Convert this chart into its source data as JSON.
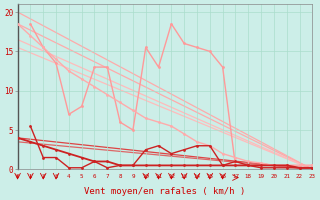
{
  "background_color": "#cceee8",
  "xlim": [
    0,
    23
  ],
  "ylim": [
    0,
    21
  ],
  "xlabel": "Vent moyen/en rafales ( km/h )",
  "xlabel_color": "#cc0000",
  "xlabel_fontsize": 6.5,
  "xtick_labels": [
    "0",
    "1",
    "2",
    "3",
    "4",
    "5",
    "6",
    "7",
    "8",
    "9",
    "10",
    "11",
    "12",
    "13",
    "14",
    "15",
    "16",
    "17",
    "18",
    "19",
    "20",
    "21",
    "22",
    "23"
  ],
  "ytick_vals": [
    0,
    5,
    10,
    15,
    20
  ],
  "grid_color": "#aaddcc",
  "straight_lines": [
    {
      "x0": 0,
      "y0": 18.5,
      "color": "#ffaaaa",
      "lw": 0.9
    },
    {
      "x0": 0,
      "y0": 15.5,
      "color": "#ffbbbb",
      "lw": 0.9
    },
    {
      "x0": 0,
      "y0": 20.0,
      "color": "#ffaaaa",
      "lw": 0.9
    },
    {
      "x0": 0,
      "y0": 16.5,
      "color": "#ffbbbb",
      "lw": 0.9
    },
    {
      "x0": 0,
      "y0": 4.0,
      "color": "#dd4444",
      "lw": 0.9
    },
    {
      "x0": 0,
      "y0": 3.5,
      "color": "#dd6666",
      "lw": 0.9
    }
  ],
  "data_lines": [
    {
      "name": "light_jagged_1",
      "x": [
        1,
        2,
        3,
        4,
        5,
        6,
        7,
        8,
        9,
        10,
        11,
        12,
        13,
        14,
        15,
        16,
        17,
        18,
        19,
        20,
        21,
        22,
        23
      ],
      "y": [
        18.5,
        15.5,
        13.5,
        7.0,
        8.0,
        13.0,
        13.0,
        6.0,
        5.0,
        15.5,
        13.0,
        18.5,
        16.0,
        15.5,
        15.0,
        13.0,
        0.5,
        0.5,
        0.5,
        0.5,
        0.5,
        0.5,
        0.5
      ],
      "color": "#ff9999",
      "lw": 1.0,
      "marker": "o",
      "ms": 2.0
    },
    {
      "name": "light_smooth_1",
      "x": [
        0,
        1,
        2,
        3,
        4,
        5,
        6,
        7,
        8,
        9,
        10,
        11,
        12,
        13,
        14,
        15,
        16,
        17,
        18,
        19,
        20,
        21,
        22,
        23
      ],
      "y": [
        18.5,
        17.0,
        15.5,
        14.0,
        12.5,
        11.5,
        10.5,
        9.5,
        8.5,
        7.5,
        6.5,
        6.0,
        5.5,
        4.5,
        3.5,
        3.0,
        2.0,
        1.5,
        1.0,
        0.8,
        0.5,
        0.5,
        0.5,
        0.5
      ],
      "color": "#ffaaaa",
      "lw": 1.0,
      "marker": "o",
      "ms": 2.0
    },
    {
      "name": "dark_small_1",
      "x": [
        0,
        1,
        2,
        3,
        4,
        5,
        6,
        7,
        8,
        9,
        10,
        11,
        12,
        13,
        14,
        15,
        16,
        17,
        18,
        19,
        20,
        21,
        22,
        23
      ],
      "y": [
        4.0,
        3.5,
        3.0,
        2.5,
        2.0,
        1.5,
        1.0,
        1.0,
        0.5,
        0.5,
        0.5,
        0.5,
        0.5,
        0.5,
        0.5,
        0.5,
        0.5,
        0.5,
        0.5,
        0.5,
        0.5,
        0.5,
        0.2,
        0.2
      ],
      "color": "#cc2222",
      "lw": 1.3,
      "marker": "o",
      "ms": 2.0
    },
    {
      "name": "dark_small_2",
      "x": [
        1,
        2,
        3,
        4,
        5,
        6,
        7,
        8,
        9,
        10,
        11,
        12,
        13,
        14,
        15,
        16,
        17,
        18,
        19,
        20,
        21,
        22,
        23
      ],
      "y": [
        5.5,
        1.5,
        1.5,
        0.2,
        0.2,
        1.0,
        0.2,
        0.5,
        0.5,
        2.5,
        3.0,
        2.0,
        2.5,
        3.0,
        3.0,
        0.5,
        1.0,
        0.5,
        0.2,
        0.2,
        0.2,
        0.2,
        0.2
      ],
      "color": "#cc2222",
      "lw": 1.0,
      "marker": "o",
      "ms": 2.0
    }
  ],
  "arrow_down_x": [
    0,
    1,
    2,
    3,
    10,
    11,
    12,
    13,
    14,
    15,
    16
  ],
  "arrow_right_x": [
    17
  ]
}
